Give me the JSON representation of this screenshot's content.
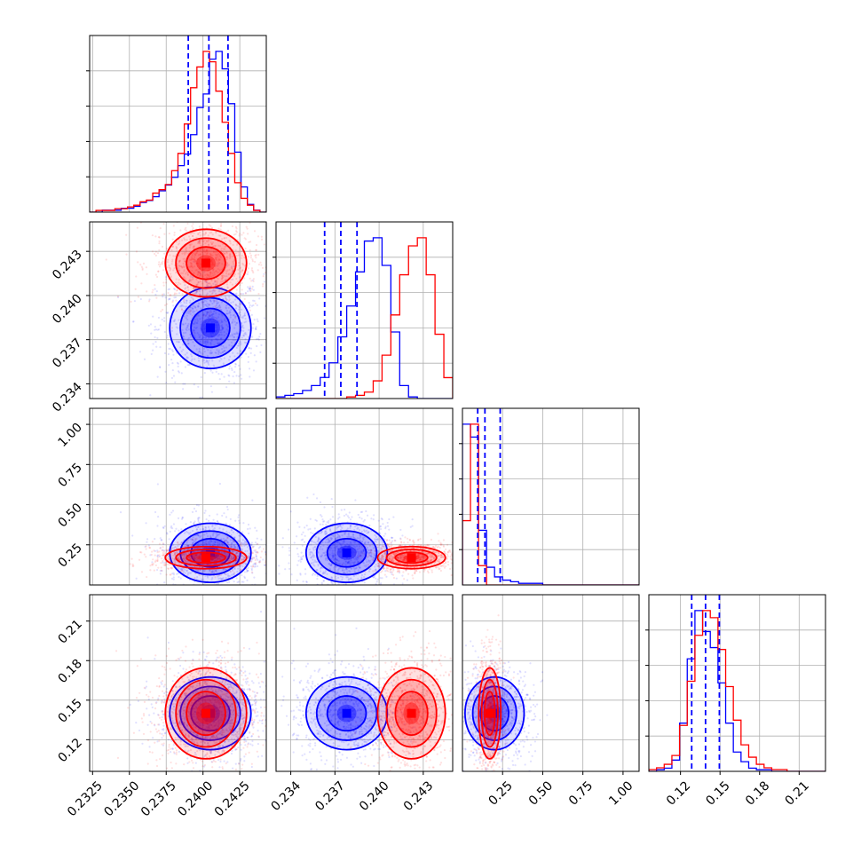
{
  "chart_data": {
    "type": "corner",
    "title": "",
    "grid": true,
    "legend": "none",
    "colors": {
      "series_a": "#ff0000",
      "series_b": "#0000ff"
    },
    "series": [
      {
        "color": "#ff0000"
      },
      {
        "color": "#0000ff"
      }
    ],
    "parameters": [
      {
        "range": [
          0.2323,
          0.2443
        ],
        "ticks": [
          0.2325,
          0.235,
          0.2375,
          0.24,
          0.2425
        ],
        "tick_labels": [
          "0.2325",
          "0.2350",
          "0.2375",
          "0.2400",
          "0.2425"
        ],
        "hist_red": [
          0,
          1,
          1,
          1,
          2,
          2,
          3,
          4,
          6,
          7,
          11,
          13,
          16,
          24,
          34,
          51,
          72,
          84,
          93,
          87,
          70,
          52,
          34,
          17,
          8,
          4,
          1,
          0
        ],
        "hist_blue": [
          0,
          0,
          1,
          1,
          1,
          2,
          2,
          3,
          5,
          6,
          8,
          11,
          14,
          18,
          24,
          30,
          40,
          54,
          61,
          79,
          83,
          74,
          56,
          31,
          13,
          4,
          1,
          0
        ],
        "quantiles_blue": [
          0.239,
          0.2404,
          0.2417
        ]
      },
      {
        "range": [
          0.233,
          0.245
        ],
        "ticks": [
          0.234,
          0.237,
          0.24,
          0.243
        ],
        "tick_labels": [
          "0.234",
          "0.237",
          "0.240",
          "0.243"
        ],
        "hist_blue": [
          1,
          2,
          3,
          5,
          8,
          13,
          22,
          38,
          57,
          78,
          97,
          99,
          82,
          41,
          8,
          1,
          0,
          0,
          0,
          0
        ],
        "hist_red": [
          0,
          0,
          0,
          0,
          0,
          0,
          0,
          0,
          1,
          2,
          4,
          11,
          27,
          52,
          77,
          95,
          100,
          77,
          40,
          13
        ],
        "quantiles_blue": [
          0.2363,
          0.2374,
          0.2385
        ]
      },
      {
        "range": [
          0.0,
          1.1
        ],
        "ticks": [
          0.25,
          0.5,
          0.75,
          1.0
        ],
        "tick_labels": [
          "0.25",
          "0.50",
          "0.75",
          "1.00"
        ],
        "hist_blue": [
          100,
          92,
          34,
          11,
          5,
          3,
          2,
          1,
          1,
          1,
          0,
          0,
          0,
          0,
          0,
          0,
          0,
          0,
          0,
          0,
          0,
          0
        ],
        "hist_red": [
          40,
          100,
          12,
          0,
          0,
          0,
          0,
          0,
          0,
          0,
          0,
          0,
          0,
          0,
          0,
          0,
          0,
          0,
          0,
          0,
          0,
          0
        ],
        "quantiles_blue": [
          0.095,
          0.14,
          0.235
        ]
      },
      {
        "range": [
          0.096,
          0.23
        ],
        "ticks": [
          0.12,
          0.15,
          0.18,
          0.21
        ],
        "tick_labels": [
          "0.12",
          "0.15",
          "0.18",
          "0.21"
        ],
        "hist_red": [
          1,
          2,
          4,
          9,
          26,
          51,
          77,
          91,
          87,
          69,
          48,
          29,
          15,
          8,
          4,
          2,
          1,
          1,
          0,
          0,
          0,
          0,
          0
        ],
        "hist_blue": [
          0,
          1,
          2,
          7,
          30,
          70,
          100,
          87,
          77,
          55,
          30,
          12,
          6,
          2,
          1,
          1,
          0,
          0,
          0,
          0,
          0,
          0,
          0
        ],
        "quantiles_blue": [
          0.1285,
          0.139,
          0.1495
        ]
      }
    ],
    "clouds": {
      "red": [
        {
          "mean": [
            0.2402,
            0.2422,
            0.17,
            0.14
          ],
          "sd": [
            0.0012,
            0.001,
            0.03,
            0.015
          ]
        }
      ],
      "blue": [
        {
          "mean": [
            0.2405,
            0.2378,
            0.2,
            0.14
          ],
          "sd": [
            0.0012,
            0.0012,
            0.08,
            0.012
          ]
        }
      ]
    }
  }
}
